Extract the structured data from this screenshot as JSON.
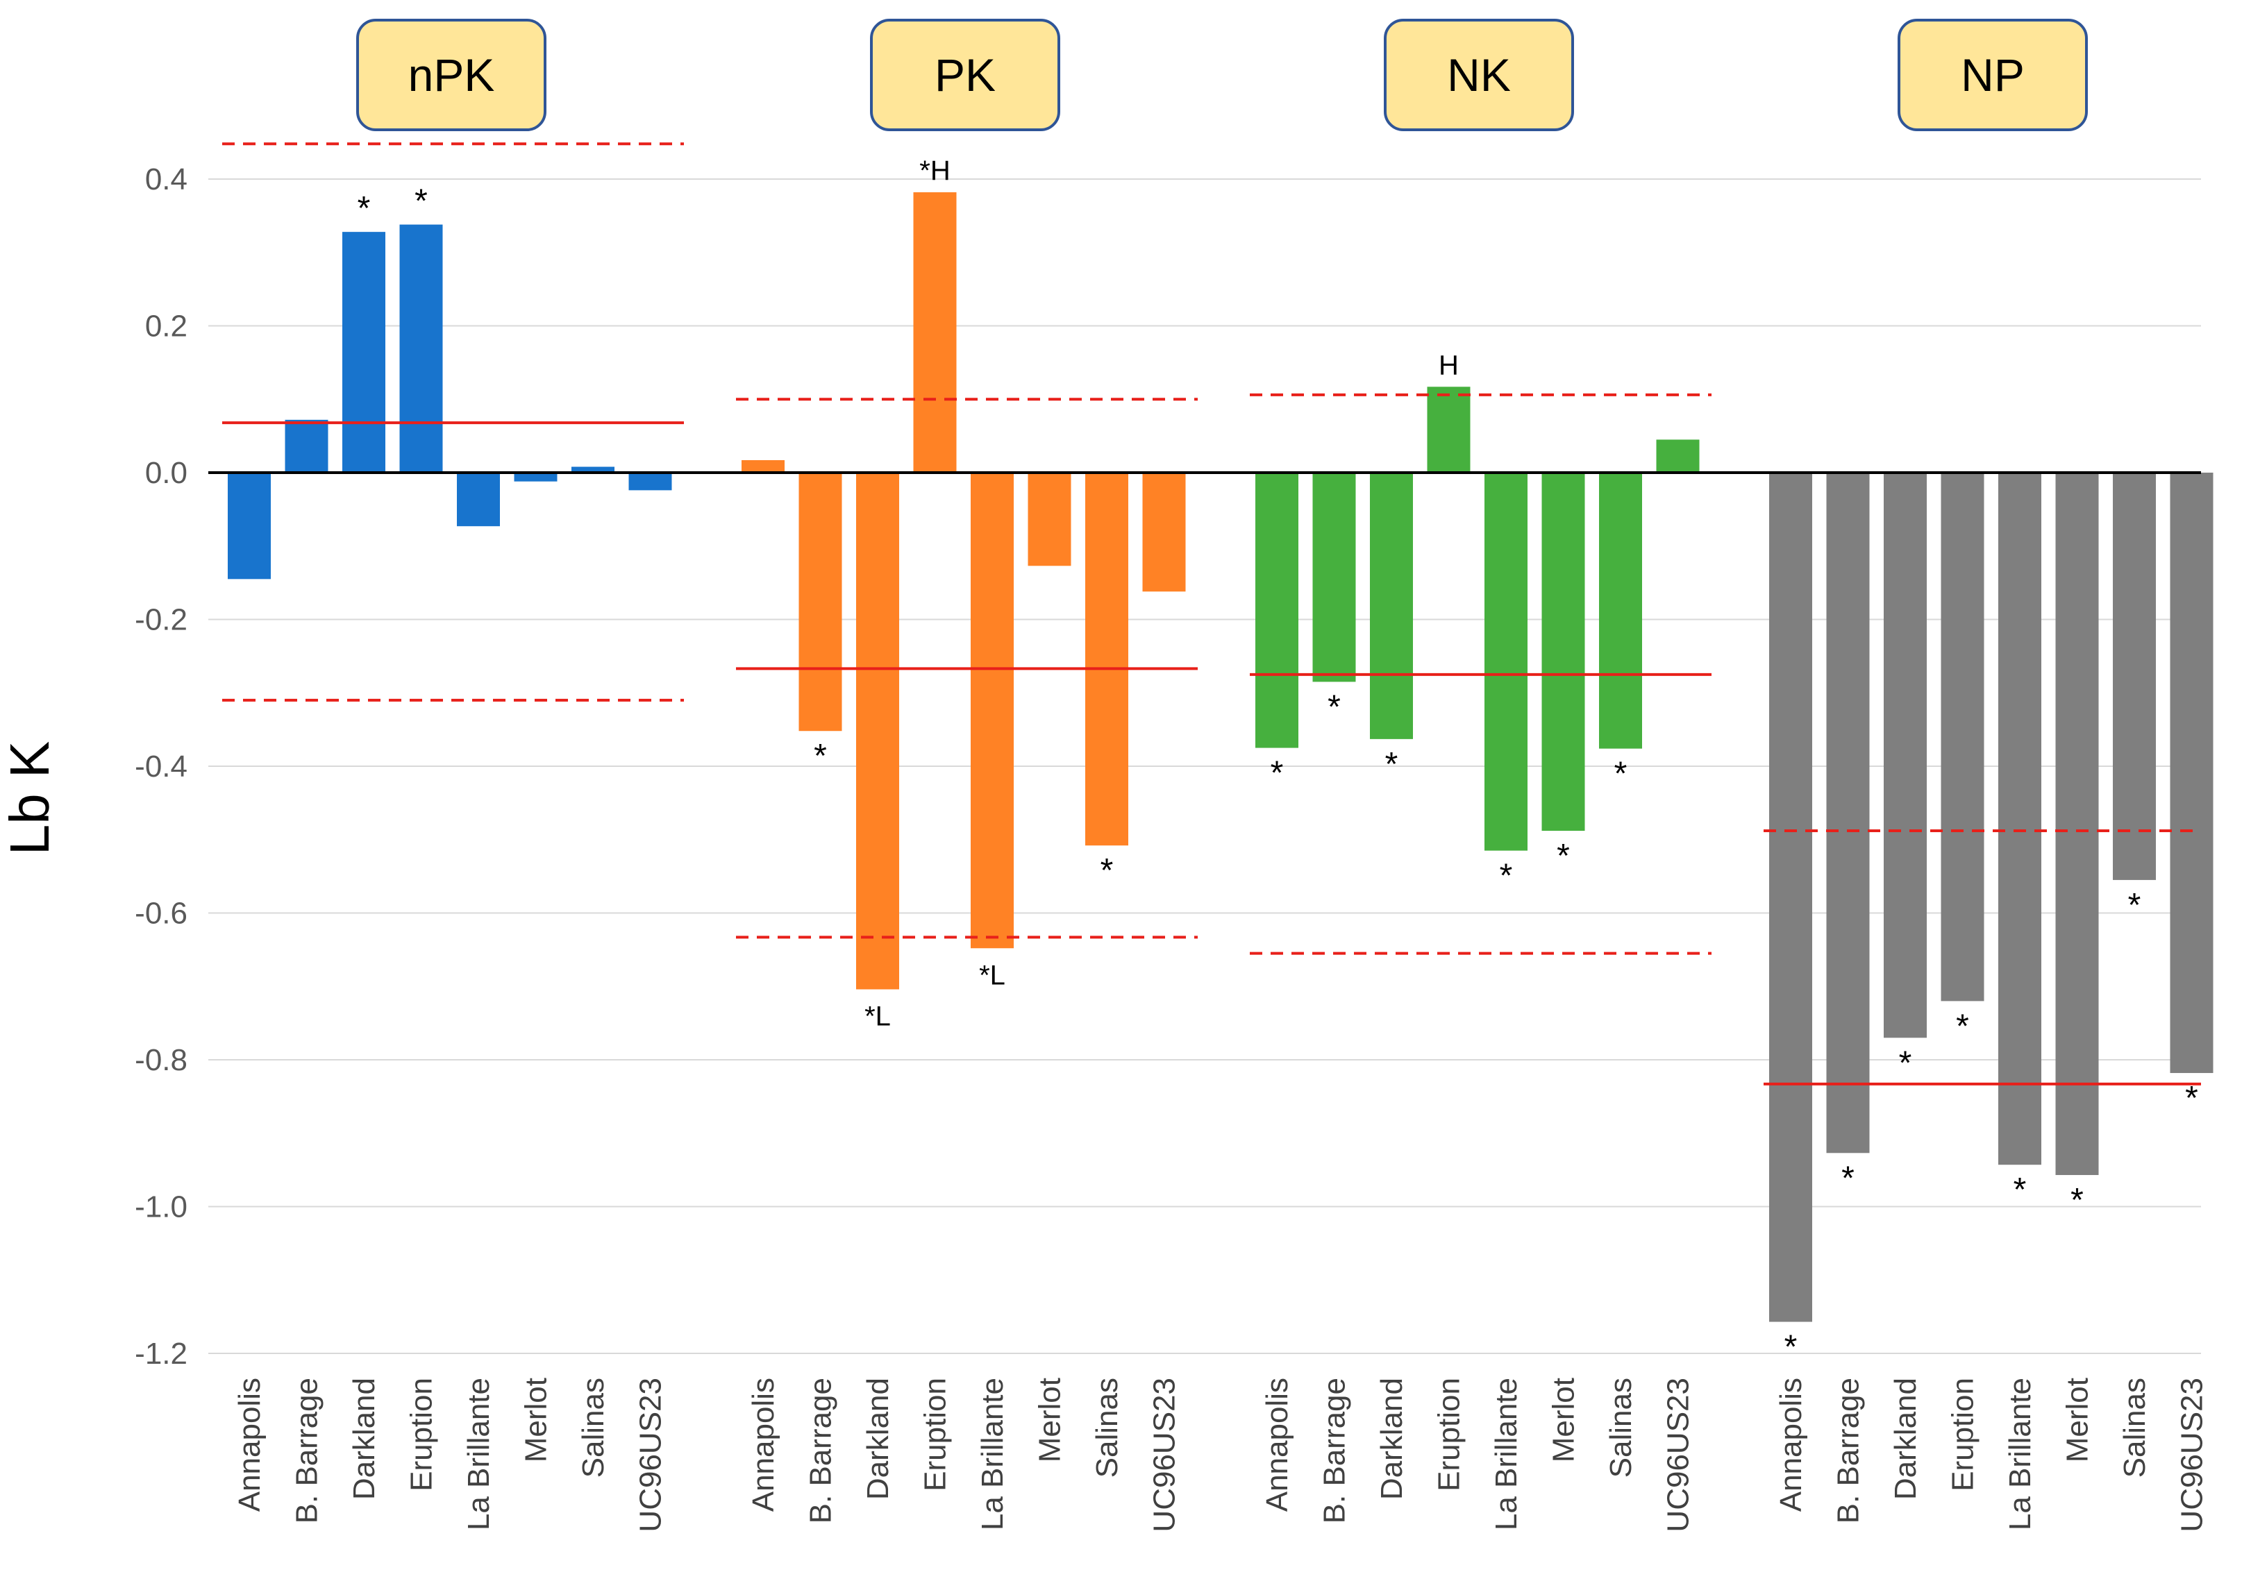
{
  "chart_data": {
    "type": "bar",
    "ylabel": "Lb K",
    "xlabel": "",
    "ylim": [
      -1.2,
      0.4
    ],
    "y_ticks": [
      "0.4",
      "0.2",
      "0.0",
      "-0.2",
      "-0.4",
      "-0.6",
      "-0.8",
      "-1.0",
      "-1.2"
    ],
    "grid": true,
    "legend": "none",
    "categories": [
      "Annapolis",
      "B. Barrage",
      "Darkland",
      "Eruption",
      "La Brillante",
      "Merlot",
      "Salinas",
      "UC96US23"
    ],
    "groups": [
      {
        "name": "nPK",
        "color": "#1874CD",
        "values": [
          -0.145,
          0.072,
          0.328,
          0.338,
          -0.073,
          -0.012,
          0.008,
          -0.024
        ],
        "annotations": [
          "",
          "",
          "*",
          "*",
          "",
          "",
          "",
          ""
        ],
        "mean": 0.068,
        "limits": [
          0.448,
          -0.31
        ]
      },
      {
        "name": "PK",
        "color": "#FF8225",
        "values": [
          0.017,
          -0.352,
          -0.704,
          0.382,
          -0.648,
          -0.127,
          -0.508,
          -0.162
        ],
        "annotations": [
          "",
          "*",
          "*L",
          "*H",
          "*L",
          "",
          "*",
          ""
        ],
        "mean": -0.267,
        "limits": [
          0.1,
          -0.633
        ]
      },
      {
        "name": "NK",
        "color": "#46B03E",
        "values": [
          -0.375,
          -0.285,
          -0.363,
          0.117,
          -0.515,
          -0.488,
          -0.376,
          0.045
        ],
        "annotations": [
          "*",
          "*",
          "*",
          "H",
          "*",
          "*",
          "*",
          ""
        ],
        "mean": -0.275,
        "limits": [
          0.106,
          -0.655
        ]
      },
      {
        "name": "NP",
        "color": "#7F7F7F",
        "values": [
          -1.157,
          -0.927,
          -0.77,
          -0.72,
          -0.943,
          -0.957,
          -0.555,
          -0.818
        ],
        "annotations": [
          "*",
          "*",
          "*",
          "*",
          "*",
          "*",
          "*",
          "*"
        ],
        "mean": -0.833,
        "limits": [
          -0.488
        ]
      }
    ],
    "colors": {
      "mean_line": "#E8201A",
      "limit_line": "#E8201A",
      "panel_fill": "#FFE699",
      "panel_border": "#2F5597",
      "grid": "#D9D9D9",
      "axis": "#000000"
    }
  }
}
